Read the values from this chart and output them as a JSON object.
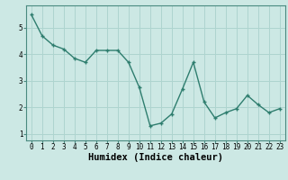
{
  "x": [
    0,
    1,
    2,
    3,
    4,
    5,
    6,
    7,
    8,
    9,
    10,
    11,
    12,
    13,
    14,
    15,
    16,
    17,
    18,
    19,
    20,
    21,
    22,
    23
  ],
  "y": [
    5.5,
    4.7,
    4.35,
    4.2,
    3.85,
    3.7,
    4.15,
    4.15,
    4.15,
    3.7,
    2.75,
    1.3,
    1.4,
    1.75,
    2.7,
    3.7,
    2.2,
    1.6,
    1.8,
    1.95,
    2.45,
    2.1,
    1.8,
    1.95
  ],
  "line_color": "#2e7d6e",
  "marker": "+",
  "marker_size": 3.5,
  "background_color": "#cce8e4",
  "grid_color": "#aed4cf",
  "xlabel": "Humidex (Indice chaleur)",
  "xlim": [
    -0.5,
    23.5
  ],
  "ylim": [
    0.75,
    5.85
  ],
  "yticks": [
    1,
    2,
    3,
    4,
    5
  ],
  "xticks": [
    0,
    1,
    2,
    3,
    4,
    5,
    6,
    7,
    8,
    9,
    10,
    11,
    12,
    13,
    14,
    15,
    16,
    17,
    18,
    19,
    20,
    21,
    22,
    23
  ],
  "tick_label_fontsize": 5.5,
  "xlabel_fontsize": 7.5,
  "line_width": 1.0,
  "spine_color": "#4a8a80"
}
